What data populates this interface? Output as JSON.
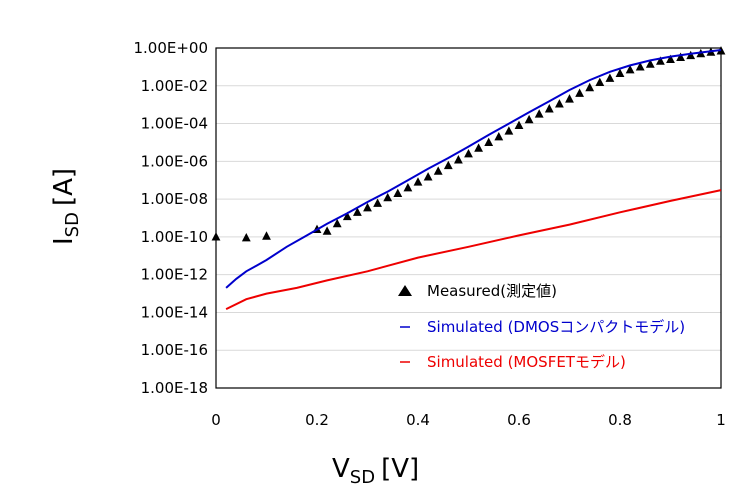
{
  "chart_data": {
    "type": "scatter",
    "xlabel_main": "V",
    "xlabel_sub": "SD",
    "xlabel_unit": "[V]",
    "ylabel_main": "I",
    "ylabel_sub": "SD",
    "ylabel_unit": "[A]",
    "xlim": [
      0,
      1
    ],
    "ylim_log10": [
      -18,
      0
    ],
    "y_scale": "log",
    "x_ticks": [
      "0",
      "0.2",
      "0.4",
      "0.6",
      "0.8",
      "1"
    ],
    "y_ticks": [
      "1.00E+00",
      "1.00E-02",
      "1.00E-04",
      "1.00E-06",
      "1.00E-08",
      "1.00E-10",
      "1.00E-12",
      "1.00E-14",
      "1.00E-16",
      "1.00E-18"
    ],
    "grid": "horizontal",
    "legend_position": "lower-right",
    "series": [
      {
        "name": "Measured(測定値)",
        "marker": "triangle",
        "color": "#000000",
        "points": [
          [
            0.0,
            1e-10
          ],
          [
            0.06,
            9e-11
          ],
          [
            0.1,
            1.1e-10
          ],
          [
            0.2,
            2.5e-10
          ],
          [
            0.22,
            2e-10
          ],
          [
            0.24,
            5e-10
          ],
          [
            0.26,
            1.2e-09
          ],
          [
            0.28,
            2e-09
          ],
          [
            0.3,
            3.5e-09
          ],
          [
            0.32,
            6e-09
          ],
          [
            0.34,
            1.2e-08
          ],
          [
            0.36,
            2e-08
          ],
          [
            0.38,
            4e-08
          ],
          [
            0.4,
            8e-08
          ],
          [
            0.42,
            1.5e-07
          ],
          [
            0.44,
            3e-07
          ],
          [
            0.46,
            6e-07
          ],
          [
            0.48,
            1.2e-06
          ],
          [
            0.5,
            2.5e-06
          ],
          [
            0.52,
            5e-06
          ],
          [
            0.54,
            1e-05
          ],
          [
            0.56,
            2e-05
          ],
          [
            0.58,
            4e-05
          ],
          [
            0.6,
            8e-05
          ],
          [
            0.62,
            0.00016
          ],
          [
            0.64,
            0.00032
          ],
          [
            0.66,
            0.0006
          ],
          [
            0.68,
            0.0011
          ],
          [
            0.7,
            0.002
          ],
          [
            0.72,
            0.004
          ],
          [
            0.74,
            0.008
          ],
          [
            0.76,
            0.015
          ],
          [
            0.78,
            0.025
          ],
          [
            0.8,
            0.045
          ],
          [
            0.82,
            0.07
          ],
          [
            0.84,
            0.1
          ],
          [
            0.86,
            0.14
          ],
          [
            0.88,
            0.2
          ],
          [
            0.9,
            0.25
          ],
          [
            0.92,
            0.32
          ],
          [
            0.94,
            0.4
          ],
          [
            0.96,
            0.5
          ],
          [
            0.98,
            0.6
          ],
          [
            1.0,
            0.7
          ]
        ]
      },
      {
        "name": "Simulated (DMOSコンパクトモデル)",
        "marker": "line",
        "color": "#0000cc",
        "points": [
          [
            0.02,
            2e-13
          ],
          [
            0.04,
            6e-13
          ],
          [
            0.06,
            1.5e-12
          ],
          [
            0.08,
            3e-12
          ],
          [
            0.1,
            6e-12
          ],
          [
            0.14,
            3e-11
          ],
          [
            0.18,
            1.2e-10
          ],
          [
            0.22,
            5e-10
          ],
          [
            0.26,
            1.8e-09
          ],
          [
            0.3,
            7e-09
          ],
          [
            0.34,
            2.5e-08
          ],
          [
            0.38,
            1e-07
          ],
          [
            0.42,
            4e-07
          ],
          [
            0.46,
            1.5e-06
          ],
          [
            0.5,
            6e-06
          ],
          [
            0.54,
            2.5e-05
          ],
          [
            0.58,
            0.0001
          ],
          [
            0.62,
            0.0004
          ],
          [
            0.66,
            0.0015
          ],
          [
            0.7,
            0.006
          ],
          [
            0.74,
            0.02
          ],
          [
            0.78,
            0.055
          ],
          [
            0.82,
            0.12
          ],
          [
            0.86,
            0.22
          ],
          [
            0.9,
            0.35
          ],
          [
            0.94,
            0.5
          ],
          [
            0.98,
            0.68
          ],
          [
            1.0,
            0.78
          ]
        ]
      },
      {
        "name": "Simulated (MOSFETモデル)",
        "marker": "line",
        "color": "#ee0000",
        "points": [
          [
            0.02,
            1.5e-14
          ],
          [
            0.06,
            5e-14
          ],
          [
            0.1,
            1e-13
          ],
          [
            0.16,
            2e-13
          ],
          [
            0.22,
            5e-13
          ],
          [
            0.3,
            1.5e-12
          ],
          [
            0.4,
            8e-12
          ],
          [
            0.5,
            3e-11
          ],
          [
            0.6,
            1.2e-10
          ],
          [
            0.7,
            4.5e-10
          ],
          [
            0.8,
            2e-09
          ],
          [
            0.9,
            8e-09
          ],
          [
            1.0,
            3e-08
          ]
        ]
      }
    ]
  }
}
